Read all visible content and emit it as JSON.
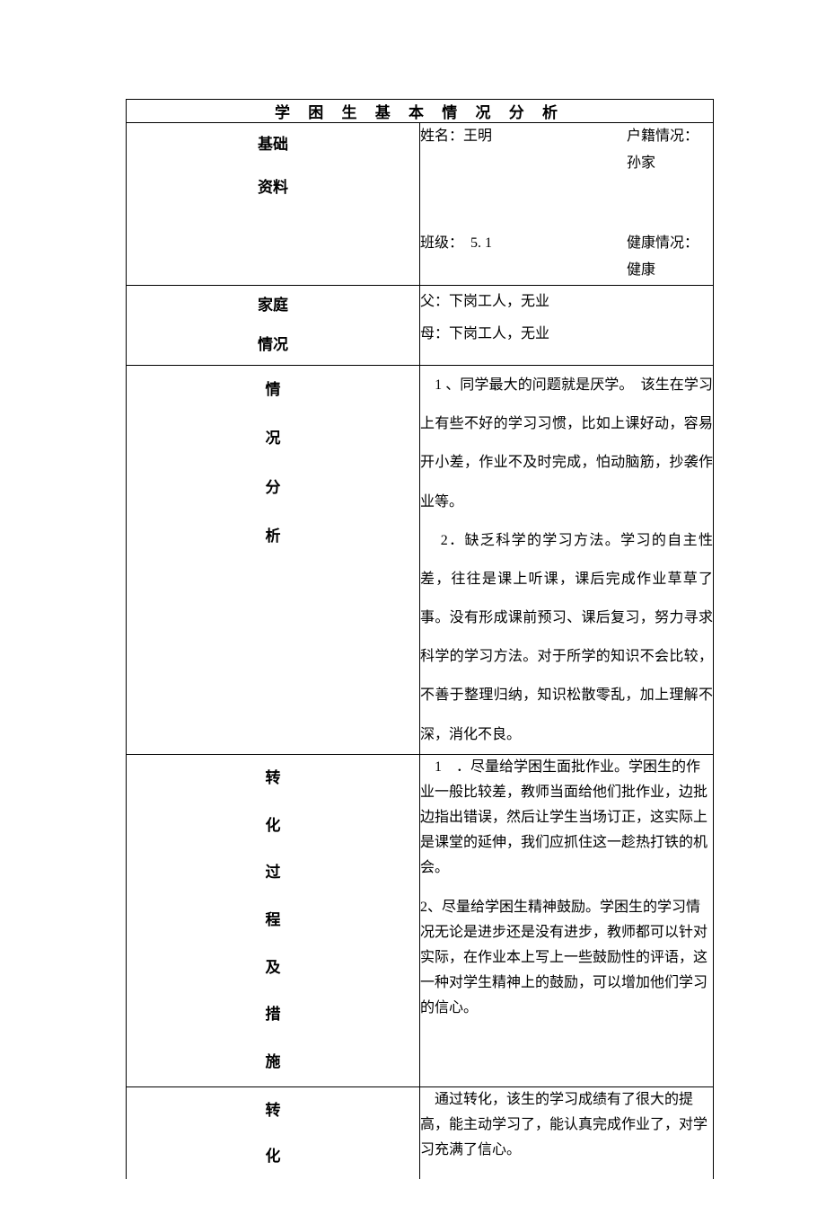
{
  "title": "学 困 生 基 本 情 况 分 析",
  "rows": {
    "basic": {
      "label_chars": [
        "基础",
        "资料"
      ],
      "name_label": "姓名：",
      "name_value": "王明",
      "huji_label": "户籍情况：",
      "huji_value": "孙家",
      "class_label": "班级：",
      "class_value": "5. 1",
      "health_label": "健康情况：",
      "health_value": "健康"
    },
    "family": {
      "label_chars": [
        "家庭",
        "情况"
      ],
      "father": "父：下岗工人，无业",
      "mother": "母：下岗工人，无业"
    },
    "analysis": {
      "label_chars": [
        "情",
        "况",
        "分",
        "析"
      ],
      "para1": "　1 、同学最大的问题就是厌学。　该生在学习上有些不好的学习习惯，比如上课好动，容易开小差，作业不及时完成，怕动脑筋，抄袭作业等。",
      "para2": "　 2．缺乏科学的学习方法。学习的自主性差，往往是课上听课，课后完成作业草草了事。没有形成课前预习、课后复习，努力寻求科学的学习方法。对于所学的知识不会比较，不善于整理归纳，知识松散零乱，加上理解不深，消化不良。"
    },
    "measures": {
      "label_chars": [
        "转",
        "化",
        "过",
        "程",
        "及",
        "措",
        "施"
      ],
      "para1": "　1　．尽量给学困生面批作业。学困生的作业一般比较差，教师当面给他们批作业，边批边指出错误，然后让学生当场订正，这实际上是课堂的延伸，我们应抓住这一趁热打铁的机会。",
      "para2": " 2、尽量给学困生精神鼓励。学困生的学习情况无论是进步还是没有进步，教师都可以针对实际，在作业本上写上一些鼓励性的评语，这一种对学生精神上的鼓励，可以增加他们学习的信心。"
    },
    "result": {
      "label_chars": [
        "转",
        "化"
      ],
      "text": "　通过转化，该生的学习成绩有了很大的提高，能主动学习了，能认真完成作业了，对学习充满了信心。"
    }
  },
  "colors": {
    "border": "#000000",
    "background": "#ffffff",
    "text": "#000000"
  },
  "font": {
    "title_size": 17,
    "label_size": 17,
    "body_size": 16
  }
}
